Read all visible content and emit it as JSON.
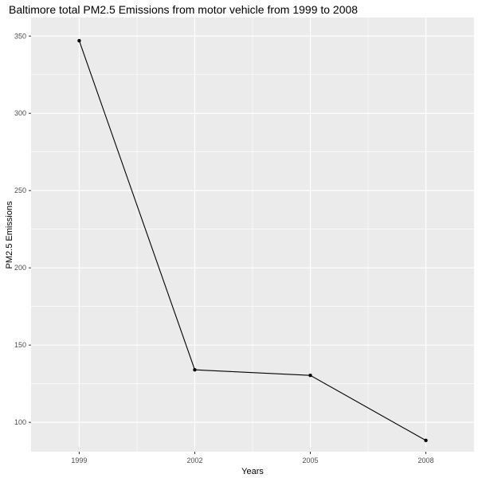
{
  "chart_data": {
    "type": "line",
    "title": "Baltimore total PM2.5 Emissions from motor vehicle from 1999 to 2008",
    "xlabel": "Years",
    "ylabel": "PM2.5 Emissions",
    "x": [
      "1999",
      "2002",
      "2005",
      "2008"
    ],
    "values": [
      347,
      134,
      130.4,
      88.3
    ],
    "xlim": [
      1997.75,
      2009.25
    ],
    "ylim": [
      81,
      362
    ],
    "yticks": [
      100,
      150,
      200,
      250,
      300,
      350
    ],
    "grid": true,
    "legend": "none",
    "colors": {
      "panel_background": "#ebebeb",
      "grid": "#ffffff",
      "line": "#000000",
      "point": "#000000"
    }
  }
}
